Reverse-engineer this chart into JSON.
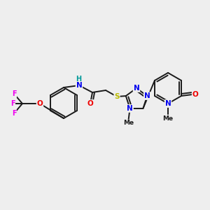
{
  "background_color": "#eeeeee",
  "bond_color": "#1a1a1a",
  "atom_colors": {
    "N": "#0000ee",
    "O": "#ee0000",
    "S": "#bbbb00",
    "F": "#ee00ee",
    "C": "#1a1a1a",
    "H": "#009999"
  },
  "figsize": [
    3.0,
    3.0
  ],
  "dpi": 100
}
